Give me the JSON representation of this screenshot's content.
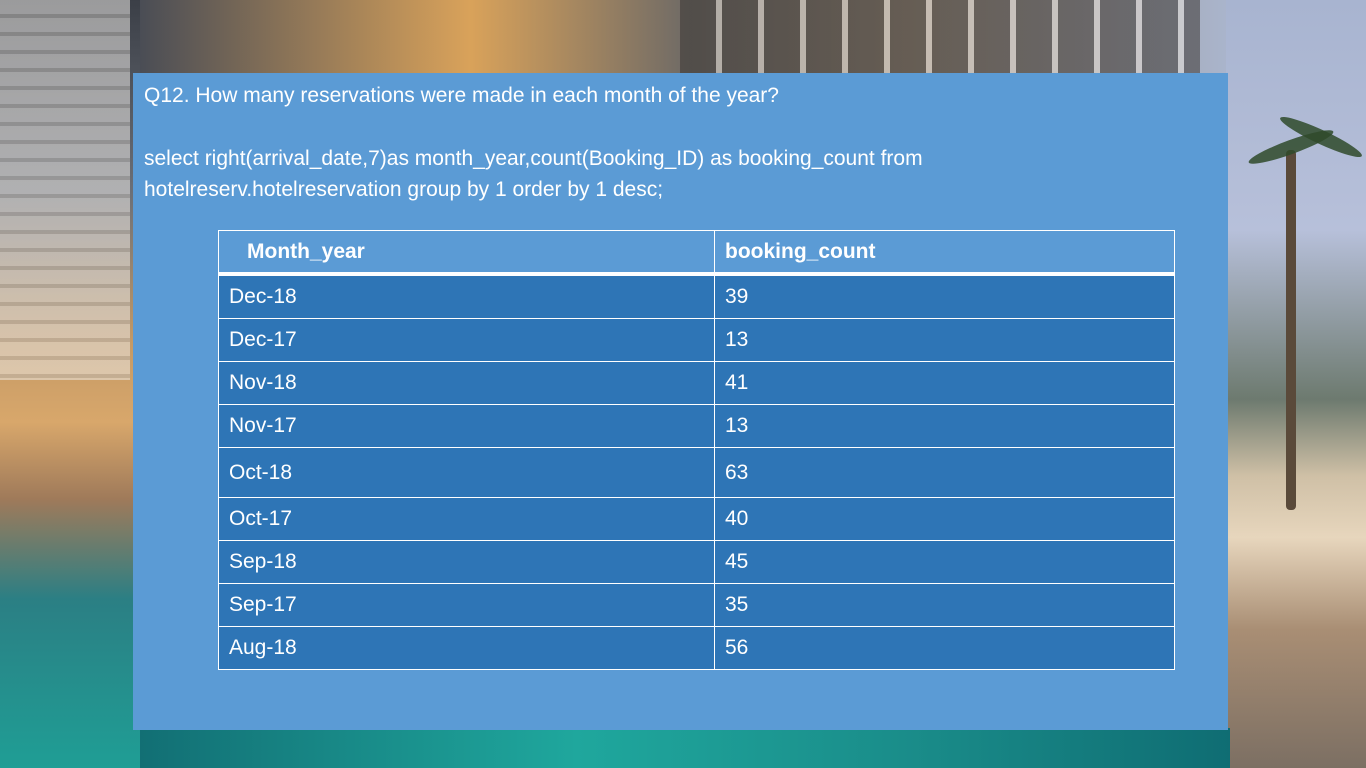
{
  "question": "Q12. How many reservations were made in each month of the year?",
  "sql": {
    "line1": "select right(arrival_date,7)as month_year,count(Booking_ID) as booking_count from",
    "line2": "hotelreserv.hotelreservation group by 1 order by 1 desc;"
  },
  "table": {
    "headers": [
      "Month_year",
      "booking_count"
    ],
    "rows": [
      [
        "Dec-18",
        "39"
      ],
      [
        "Dec-17",
        "13"
      ],
      [
        "Nov-18",
        "41"
      ],
      [
        "Nov-17",
        "13"
      ],
      [
        "Oct-18",
        "63"
      ],
      [
        "Oct-17",
        "40"
      ],
      [
        "Sep-18",
        "45"
      ],
      [
        "Sep-17",
        "35"
      ],
      [
        "Aug-18",
        "56"
      ]
    ]
  },
  "colors": {
    "panel": "#5b9bd5",
    "cell": "#2e75b6",
    "text": "#ffffff"
  }
}
